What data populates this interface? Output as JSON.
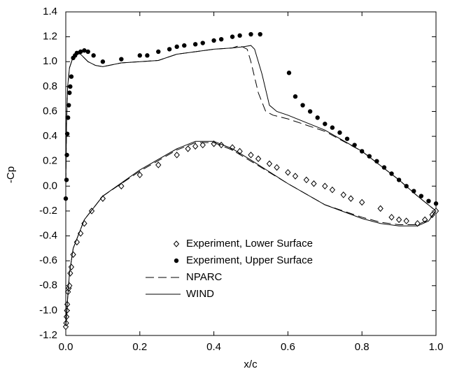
{
  "chart_data": {
    "type": "scatter",
    "xlabel": "x/c",
    "ylabel": "-Cp",
    "xlim": [
      0,
      1
    ],
    "ylim": [
      -1.2,
      1.4
    ],
    "xticks": [
      {
        "value": 0,
        "label": "0.0"
      },
      0.2,
      0.4,
      0.6,
      0.8,
      {
        "value": 1,
        "label": "1.0"
      }
    ],
    "yticks": [
      -1.2,
      {
        "value": -1,
        "label": "-1.0"
      },
      -0.8,
      -0.6,
      -0.4,
      -0.2,
      {
        "value": 0,
        "label": "0.0"
      },
      0.2,
      0.4,
      0.6,
      0.8,
      {
        "value": 1,
        "label": "1.0"
      },
      1.2,
      1.4
    ],
    "legend": "center",
    "series": [
      {
        "name": "Experiment, Lower Surface",
        "type": "scatter",
        "marker": "diamond-open",
        "color": "#000000",
        "x": [
          0.0,
          0.001,
          0.002,
          0.003,
          0.004,
          0.006,
          0.008,
          0.01,
          0.012,
          0.015,
          0.02,
          0.03,
          0.04,
          0.05,
          0.07,
          0.1,
          0.15,
          0.2,
          0.25,
          0.3,
          0.33,
          0.35,
          0.37,
          0.4,
          0.42,
          0.45,
          0.47,
          0.5,
          0.52,
          0.55,
          0.57,
          0.6,
          0.62,
          0.65,
          0.67,
          0.7,
          0.72,
          0.75,
          0.77,
          0.8,
          0.85,
          0.88,
          0.9,
          0.92,
          0.95,
          0.97,
          0.99,
          1.0
        ],
        "values": [
          -1.13,
          -1.1,
          -1.05,
          -1.0,
          -0.95,
          -0.85,
          -0.82,
          -0.8,
          -0.7,
          -0.65,
          -0.55,
          -0.45,
          -0.38,
          -0.3,
          -0.2,
          -0.1,
          0.0,
          0.09,
          0.17,
          0.25,
          0.3,
          0.32,
          0.33,
          0.34,
          0.33,
          0.31,
          0.28,
          0.25,
          0.22,
          0.18,
          0.15,
          0.11,
          0.08,
          0.05,
          0.02,
          0.0,
          -0.03,
          -0.07,
          -0.1,
          -0.13,
          -0.18,
          -0.25,
          -0.27,
          -0.28,
          -0.3,
          -0.27,
          -0.23,
          -0.2
        ]
      },
      {
        "name": "Experiment, Upper Surface",
        "type": "scatter",
        "marker": "dot-filled",
        "color": "#000000",
        "x": [
          0.0,
          0.002,
          0.003,
          0.004,
          0.006,
          0.008,
          0.01,
          0.012,
          0.015,
          0.02,
          0.025,
          0.03,
          0.04,
          0.05,
          0.06,
          0.075,
          0.1,
          0.15,
          0.2,
          0.22,
          0.25,
          0.28,
          0.3,
          0.32,
          0.35,
          0.37,
          0.4,
          0.42,
          0.45,
          0.47,
          0.5,
          0.525,
          0.603,
          0.62,
          0.64,
          0.66,
          0.68,
          0.7,
          0.72,
          0.74,
          0.76,
          0.78,
          0.8,
          0.82,
          0.84,
          0.86,
          0.88,
          0.9,
          0.92,
          0.94,
          0.96,
          0.98,
          1.0
        ],
        "values": [
          -0.1,
          0.05,
          0.25,
          0.42,
          0.55,
          0.65,
          0.75,
          0.8,
          0.88,
          1.03,
          1.05,
          1.07,
          1.08,
          1.09,
          1.08,
          1.05,
          1.0,
          1.02,
          1.05,
          1.05,
          1.08,
          1.1,
          1.12,
          1.13,
          1.14,
          1.15,
          1.17,
          1.18,
          1.2,
          1.21,
          1.22,
          1.22,
          0.91,
          0.72,
          0.65,
          0.6,
          0.55,
          0.5,
          0.47,
          0.43,
          0.38,
          0.33,
          0.28,
          0.24,
          0.2,
          0.15,
          0.1,
          0.05,
          0.0,
          -0.04,
          -0.08,
          -0.12,
          -0.14
        ]
      },
      {
        "name": "NPARC",
        "type": "line",
        "dash": "12,6",
        "color": "#000000",
        "x": [
          1.0,
          0.98,
          0.95,
          0.9,
          0.85,
          0.8,
          0.7,
          0.6,
          0.5,
          0.45,
          0.4,
          0.35,
          0.3,
          0.2,
          0.1,
          0.05,
          0.02,
          0.01,
          0.005,
          0.002,
          0.0,
          0.0,
          0.002,
          0.005,
          0.01,
          0.02,
          0.03,
          0.04,
          0.06,
          0.08,
          0.1,
          0.15,
          0.2,
          0.25,
          0.3,
          0.35,
          0.4,
          0.45,
          0.47,
          0.49,
          0.5,
          0.52,
          0.54,
          0.56,
          0.6,
          0.7,
          0.8,
          0.9,
          0.95,
          1.0
        ],
        "values": [
          -0.2,
          -0.27,
          -0.31,
          -0.31,
          -0.29,
          -0.25,
          -0.15,
          0.02,
          0.2,
          0.29,
          0.35,
          0.35,
          0.29,
          0.12,
          -0.08,
          -0.27,
          -0.5,
          -0.7,
          -0.9,
          -1.05,
          -1.12,
          0.0,
          0.5,
          0.8,
          0.95,
          1.04,
          1.07,
          1.06,
          1.0,
          0.97,
          0.96,
          0.99,
          1.0,
          1.01,
          1.06,
          1.08,
          1.1,
          1.11,
          1.13,
          1.1,
          1.0,
          0.75,
          0.6,
          0.57,
          0.54,
          0.44,
          0.28,
          0.05,
          -0.08,
          -0.2
        ]
      },
      {
        "name": "WIND",
        "type": "line",
        "dash": "none",
        "color": "#000000",
        "x": [
          1.0,
          0.98,
          0.95,
          0.9,
          0.85,
          0.8,
          0.7,
          0.6,
          0.5,
          0.45,
          0.4,
          0.35,
          0.3,
          0.2,
          0.1,
          0.05,
          0.02,
          0.01,
          0.005,
          0.002,
          0.0,
          0.0,
          0.002,
          0.005,
          0.01,
          0.02,
          0.03,
          0.04,
          0.06,
          0.08,
          0.1,
          0.15,
          0.2,
          0.25,
          0.3,
          0.35,
          0.4,
          0.45,
          0.48,
          0.5,
          0.51,
          0.53,
          0.55,
          0.57,
          0.6,
          0.7,
          0.8,
          0.9,
          0.95,
          1.0
        ],
        "values": [
          -0.2,
          -0.28,
          -0.32,
          -0.32,
          -0.3,
          -0.26,
          -0.15,
          0.02,
          0.21,
          0.3,
          0.36,
          0.36,
          0.3,
          0.13,
          -0.08,
          -0.27,
          -0.5,
          -0.7,
          -0.9,
          -1.05,
          -1.12,
          0.0,
          0.5,
          0.8,
          0.95,
          1.04,
          1.07,
          1.06,
          1.0,
          0.97,
          0.96,
          0.99,
          1.0,
          1.01,
          1.06,
          1.08,
          1.1,
          1.11,
          1.12,
          1.13,
          1.1,
          0.9,
          0.65,
          0.6,
          0.57,
          0.45,
          0.28,
          0.05,
          -0.08,
          -0.2
        ]
      }
    ]
  }
}
